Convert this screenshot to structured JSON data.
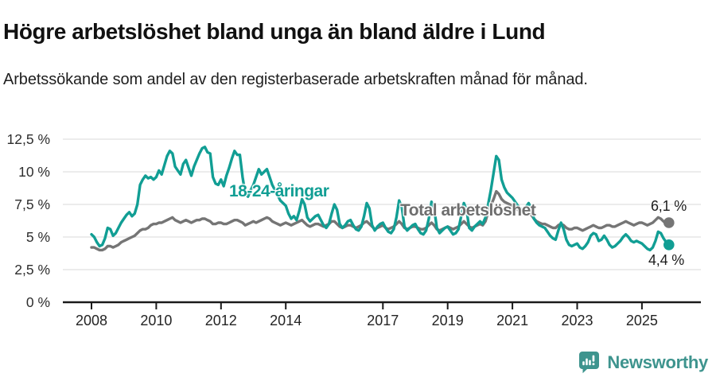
{
  "header": {
    "title": "Högre arbetslöshet bland unga än bland äldre i Lund",
    "subtitle": "Arbetssökande som andel av den registerbaserade arbetskraften månad för månad."
  },
  "chart_data": {
    "type": "line",
    "title": "Högre arbetslöshet bland unga än bland äldre i Lund",
    "xlabel": "",
    "ylabel": "Arbetssökande som andel av den registerbaserade arbetskraften",
    "grid": true,
    "legend_position": "inline-labels-on-chart",
    "ylim": [
      0,
      13.2
    ],
    "x_start_month": "2008-01",
    "x_end_month": "2025-11",
    "y_ticks": [
      {
        "value": 0,
        "label": "0 %"
      },
      {
        "value": 2.5,
        "label": "2,5 %"
      },
      {
        "value": 5,
        "label": "5 %"
      },
      {
        "value": 7.5,
        "label": "7,5 %"
      },
      {
        "value": 10,
        "label": "10 %"
      },
      {
        "value": 12.5,
        "label": "12,5 %"
      }
    ],
    "x_ticks": [
      {
        "year": 2008,
        "label": "2008"
      },
      {
        "year": 2010,
        "label": "2010"
      },
      {
        "year": 2012,
        "label": "2012"
      },
      {
        "year": 2014,
        "label": "2014"
      },
      {
        "year": 2017,
        "label": "2017"
      },
      {
        "year": 2019,
        "label": "2019"
      },
      {
        "year": 2021,
        "label": "2021"
      },
      {
        "year": 2023,
        "label": "2023"
      },
      {
        "year": 2025,
        "label": "2025"
      }
    ],
    "series": [
      {
        "name": "18-24-åringar",
        "color": "#119e94",
        "end_label": "4,4 %",
        "end_value": 4.4,
        "start": "2008-01",
        "values": [
          5.2,
          5.0,
          4.6,
          4.3,
          4.4,
          4.9,
          5.7,
          5.6,
          5.1,
          5.3,
          5.7,
          6.1,
          6.4,
          6.7,
          6.9,
          6.6,
          6.8,
          7.5,
          9.0,
          9.4,
          9.7,
          9.5,
          9.6,
          9.4,
          9.6,
          10.1,
          9.8,
          10.5,
          11.2,
          11.6,
          11.4,
          10.4,
          10.1,
          9.8,
          10.6,
          10.9,
          10.3,
          9.7,
          10.4,
          10.9,
          11.4,
          11.8,
          11.9,
          11.5,
          11.4,
          9.6,
          9.1,
          9.0,
          9.4,
          8.9,
          9.7,
          10.3,
          11.0,
          11.6,
          11.3,
          11.3,
          9.6,
          8.3,
          8.1,
          8.6,
          9.0,
          9.6,
          10.2,
          9.8,
          10.0,
          10.2,
          9.6,
          9.0,
          8.6,
          8.2,
          7.8,
          7.6,
          7.4,
          6.8,
          6.4,
          6.6,
          6.3,
          7.0,
          7.9,
          7.5,
          6.5,
          6.2,
          6.4,
          6.6,
          6.7,
          6.3,
          5.9,
          5.7,
          6.0,
          6.8,
          7.5,
          7.1,
          6.0,
          5.7,
          5.9,
          6.2,
          6.3,
          5.9,
          5.6,
          5.5,
          5.8,
          6.6,
          7.6,
          7.2,
          5.9,
          5.5,
          5.8,
          6.0,
          6.1,
          5.7,
          5.4,
          5.3,
          5.6,
          6.5,
          7.8,
          7.3,
          5.8,
          5.5,
          5.7,
          5.9,
          6.0,
          5.6,
          5.3,
          5.2,
          5.5,
          6.4,
          7.7,
          7.2,
          5.7,
          5.3,
          5.5,
          5.7,
          5.8,
          5.5,
          5.2,
          5.3,
          5.6,
          6.6,
          7.6,
          7.1,
          5.7,
          5.5,
          5.8,
          6.0,
          6.2,
          6.0,
          6.5,
          7.5,
          8.6,
          9.9,
          11.2,
          10.9,
          9.4,
          8.8,
          8.4,
          8.2,
          8.0,
          7.7,
          7.4,
          7.2,
          7.0,
          7.3,
          7.6,
          7.2,
          6.4,
          6.1,
          5.9,
          5.8,
          5.7,
          5.4,
          5.1,
          4.9,
          4.8,
          5.5,
          6.1,
          5.6,
          4.8,
          4.4,
          4.3,
          4.4,
          4.5,
          4.2,
          4.1,
          4.3,
          4.6,
          5.1,
          5.3,
          5.2,
          4.7,
          4.8,
          5.1,
          4.8,
          4.4,
          4.2,
          4.3,
          4.5,
          4.7,
          5.0,
          5.2,
          5.0,
          4.7,
          4.6,
          4.7,
          4.6,
          4.5,
          4.3,
          4.1,
          4.0,
          4.2,
          4.7,
          5.4,
          5.3,
          4.9,
          4.6,
          4.4
        ]
      },
      {
        "name": "Total arbetslöshet",
        "color": "#757575",
        "end_label": "6,1 %",
        "end_value": 6.1,
        "start": "2008-01",
        "values": [
          4.2,
          4.2,
          4.1,
          4.0,
          4.0,
          4.1,
          4.3,
          4.3,
          4.2,
          4.3,
          4.4,
          4.6,
          4.7,
          4.8,
          4.9,
          5.0,
          5.1,
          5.3,
          5.5,
          5.6,
          5.6,
          5.7,
          5.9,
          6.0,
          6.0,
          6.1,
          6.1,
          6.2,
          6.3,
          6.4,
          6.5,
          6.3,
          6.2,
          6.1,
          6.2,
          6.3,
          6.2,
          6.1,
          6.2,
          6.3,
          6.3,
          6.4,
          6.4,
          6.3,
          6.2,
          6.0,
          6.0,
          6.1,
          6.1,
          6.0,
          6.0,
          6.1,
          6.2,
          6.3,
          6.3,
          6.2,
          6.1,
          5.9,
          6.0,
          6.1,
          6.2,
          6.1,
          6.2,
          6.3,
          6.4,
          6.5,
          6.4,
          6.2,
          6.1,
          6.0,
          5.9,
          6.0,
          6.1,
          6.0,
          5.9,
          6.0,
          6.1,
          6.2,
          6.3,
          6.1,
          5.9,
          5.8,
          5.9,
          6.0,
          6.0,
          5.9,
          5.8,
          5.9,
          6.0,
          6.2,
          6.2,
          6.0,
          5.8,
          5.7,
          5.8,
          5.9,
          5.9,
          5.8,
          5.7,
          5.8,
          5.9,
          6.1,
          6.2,
          6.0,
          5.8,
          5.6,
          5.7,
          5.8,
          5.9,
          5.7,
          5.6,
          5.7,
          5.8,
          6.0,
          6.2,
          6.0,
          5.7,
          5.6,
          5.7,
          5.8,
          5.8,
          5.7,
          5.6,
          5.6,
          5.7,
          5.9,
          6.1,
          5.9,
          5.6,
          5.5,
          5.6,
          5.7,
          5.8,
          5.7,
          5.6,
          5.7,
          5.8,
          6.0,
          6.2,
          6.0,
          5.8,
          5.7,
          5.8,
          5.9,
          6.0,
          5.9,
          6.2,
          6.9,
          7.4,
          7.9,
          8.5,
          8.3,
          7.9,
          7.7,
          7.6,
          7.5,
          7.4,
          7.2,
          7.1,
          6.9,
          6.8,
          6.8,
          6.9,
          6.7,
          6.4,
          6.2,
          6.1,
          6.0,
          6.0,
          5.9,
          5.8,
          5.7,
          5.7,
          5.9,
          6.0,
          5.9,
          5.7,
          5.6,
          5.6,
          5.7,
          5.7,
          5.6,
          5.5,
          5.6,
          5.7,
          5.8,
          5.9,
          5.8,
          5.7,
          5.7,
          5.8,
          5.9,
          5.9,
          5.8,
          5.8,
          5.9,
          6.0,
          6.1,
          6.2,
          6.1,
          6.0,
          5.9,
          6.0,
          6.1,
          6.1,
          6.0,
          5.9,
          6.0,
          6.1,
          6.3,
          6.5,
          6.4,
          6.2,
          6.0,
          6.1
        ]
      }
    ],
    "colors": {
      "grid": "#e1e1e1",
      "axis": "#1a1a1a",
      "tick_label": "#2b2b2b"
    }
  },
  "footer": {
    "brand": "Newsworthy",
    "logo_icon": "newsworthy-speech-bubble-bar-chart-icon",
    "brand_color": "#3e948e"
  }
}
